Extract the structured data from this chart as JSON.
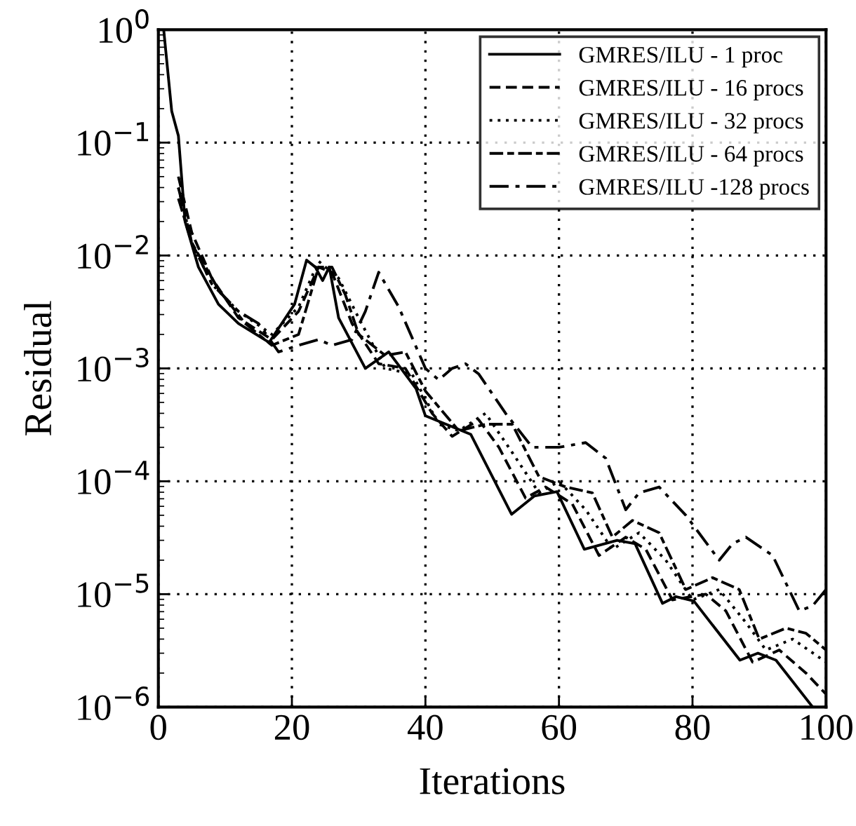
{
  "chart_data": {
    "type": "line",
    "xlabel": "Iterations",
    "ylabel": "Residual",
    "log": "y",
    "grid": true,
    "legend": "top right",
    "xlim": [
      0,
      100
    ],
    "ylim": [
      1e-06,
      1
    ],
    "xticks": [
      0,
      20,
      40,
      60,
      80,
      100
    ],
    "yticks": [
      {
        "value": 1e-06,
        "label": "10$^{−6}$"
      },
      {
        "value": 1e-05,
        "label": "10$^{−5}$"
      },
      {
        "value": 0.0001,
        "label": "10$^{−4}$"
      },
      {
        "value": 0.001,
        "label": "10$^{−3}$"
      },
      {
        "value": 0.01,
        "label": "10$^{−2}$"
      },
      {
        "value": 0.1,
        "label": "10$^{−1}$"
      },
      {
        "value": 1,
        "label": "10$^{0}$"
      }
    ],
    "series": [
      {
        "name": "GMRES/ILU - 1 proc",
        "color": "#000000",
        "line_style": "solid",
        "x": [
          0.8,
          2,
          3,
          4,
          6,
          9,
          12,
          16.6,
          20.4,
          22.2,
          23.5,
          24.6,
          25.6,
          27,
          31,
          34.5,
          38.6,
          40,
          46.8,
          52.9,
          56.3,
          59.7,
          63.8,
          68.7,
          71.4,
          75.5,
          77.5,
          80.2,
          87.1,
          89.8,
          92.5,
          98
        ],
        "values": [
          1,
          0.19,
          0.115,
          0.02,
          0.0079,
          0.0037,
          0.0025,
          0.0017,
          0.0037,
          0.0091,
          0.0079,
          0.006,
          0.0079,
          0.0028,
          0.001,
          0.0014,
          0.00066,
          0.00038,
          0.00026,
          5.1e-05,
          7.4e-05,
          8.1e-05,
          2.5e-05,
          3e-05,
          2.8e-05,
          8.3e-06,
          9.5e-06,
          8.7e-06,
          2.6e-06,
          3e-06,
          2.6e-06,
          1e-06
        ]
      },
      {
        "name": "GMRES/ILU - 16 procs",
        "color": "#000000",
        "line_style": "dashed",
        "x": [
          3,
          5,
          8,
          12,
          17,
          21,
          24,
          26,
          29,
          33,
          37,
          41,
          44,
          48,
          51,
          55,
          58,
          62,
          66,
          70,
          73,
          77,
          82,
          85,
          89,
          93,
          97,
          100
        ],
        "values": [
          0.05,
          0.016,
          0.0063,
          0.0028,
          0.0018,
          0.0032,
          0.0079,
          0.0071,
          0.0025,
          0.0011,
          0.001,
          0.0004,
          0.00025,
          0.00035,
          0.0002,
          7.1e-05,
          8.9e-05,
          6.3e-05,
          2.2e-05,
          3.2e-05,
          2.5e-05,
          8.9e-06,
          1e-05,
          7.1e-06,
          2.5e-06,
          3.2e-06,
          2e-06,
          1.3e-06
        ]
      },
      {
        "name": "GMRES/ILU - 32 procs",
        "color": "#000000",
        "line_style": "dotted",
        "x": [
          3,
          5,
          8,
          12,
          17,
          21,
          24,
          27,
          30,
          34,
          38,
          42,
          45,
          49,
          53,
          57,
          60,
          64,
          68,
          72,
          76,
          80,
          84,
          88,
          91,
          95,
          100
        ],
        "values": [
          0.04,
          0.013,
          0.0056,
          0.0032,
          0.002,
          0.0035,
          0.0089,
          0.0063,
          0.0028,
          0.001,
          0.00089,
          0.00032,
          0.00028,
          0.0004,
          0.00018,
          7.9e-05,
          0.0001,
          5.6e-05,
          2.5e-05,
          3.5e-05,
          2e-05,
          8.9e-06,
          1.1e-05,
          5.6e-06,
          3.2e-06,
          4e-06,
          2.5e-06
        ]
      },
      {
        "name": "GMRES/ILU - 64 procs",
        "color": "#000000",
        "line_style": "longdashdash",
        "x": [
          3,
          5,
          9,
          13,
          17,
          21,
          24,
          26,
          28,
          30,
          34,
          37,
          40,
          45,
          49,
          53,
          57,
          61,
          65,
          68,
          71,
          75,
          79,
          83,
          87,
          90,
          94,
          97,
          100
        ],
        "values": [
          0.032,
          0.013,
          0.005,
          0.0025,
          0.0016,
          0.002,
          0.0079,
          0.0079,
          0.0045,
          0.002,
          0.0013,
          0.0014,
          0.00063,
          0.00028,
          0.00032,
          0.00032,
          0.00011,
          8.9e-05,
          7.9e-05,
          3.2e-05,
          4.5e-05,
          3.5e-05,
          1.1e-05,
          1.4e-05,
          1.1e-05,
          4e-06,
          5e-06,
          4.5e-06,
          3.2e-06
        ]
      },
      {
        "name": "GMRES/ILU -128 procs",
        "color": "#000000",
        "line_style": "dashdot",
        "x": [
          3,
          5,
          8,
          12,
          15,
          18,
          21,
          24,
          26,
          29,
          31,
          33,
          36,
          40,
          42,
          44,
          46,
          48,
          52,
          56,
          60,
          64,
          67,
          70,
          72,
          75,
          79,
          84,
          86,
          88,
          92,
          96,
          98,
          100
        ],
        "values": [
          0.04,
          0.013,
          0.0056,
          0.0032,
          0.0025,
          0.0014,
          0.0016,
          0.0018,
          0.0016,
          0.0018,
          0.0032,
          0.0071,
          0.0035,
          0.001,
          0.00079,
          0.001,
          0.0011,
          0.00089,
          0.0004,
          0.0002,
          0.0002,
          0.00022,
          0.00016,
          5.6e-05,
          7.9e-05,
          8.9e-05,
          5e-05,
          2e-05,
          2.8e-05,
          3.2e-05,
          2.2e-05,
          7.1e-06,
          7.9e-06,
          1.1e-05
        ]
      }
    ]
  }
}
